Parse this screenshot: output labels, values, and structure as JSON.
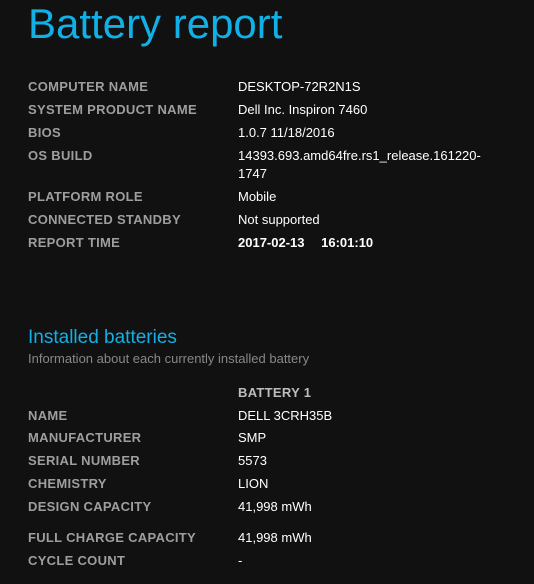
{
  "title": "Battery report",
  "system": [
    {
      "label": "COMPUTER NAME",
      "value": "DESKTOP-72R2N1S",
      "bold": false
    },
    {
      "label": "SYSTEM PRODUCT NAME",
      "value": "Dell Inc. Inspiron 7460",
      "bold": false
    },
    {
      "label": "BIOS",
      "value": "1.0.7 11/18/2016",
      "bold": false
    },
    {
      "label": "OS BUILD",
      "value": "14393.693.amd64fre.rs1_release.161220-1747",
      "bold": false
    },
    {
      "label": "PLATFORM ROLE",
      "value": "Mobile",
      "bold": false
    },
    {
      "label": "CONNECTED STANDBY",
      "value": "Not supported",
      "bold": false
    },
    {
      "label": "REPORT TIME",
      "value": "2017-02-13  16:01:10",
      "bold": true
    }
  ],
  "batteries": {
    "title": "Installed batteries",
    "subtitle": "Information about each currently installed battery",
    "header": "BATTERY 1",
    "rows1": [
      {
        "label": "NAME",
        "value": "DELL 3CRH35B"
      },
      {
        "label": "MANUFACTURER",
        "value": "SMP"
      },
      {
        "label": "SERIAL NUMBER",
        "value": "5573"
      },
      {
        "label": "CHEMISTRY",
        "value": "LION"
      },
      {
        "label": "DESIGN CAPACITY",
        "value": "41,998 mWh"
      }
    ],
    "rows2": [
      {
        "label": "FULL CHARGE CAPACITY",
        "value": "41,998 mWh"
      },
      {
        "label": "CYCLE COUNT",
        "value": "-"
      }
    ]
  }
}
